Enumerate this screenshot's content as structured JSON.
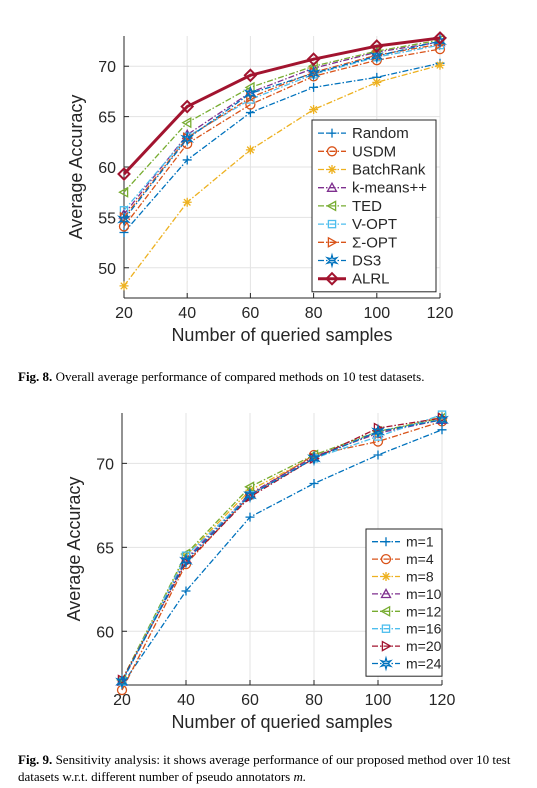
{
  "figures": [
    {
      "caption": {
        "label": "Fig. 8.",
        "text": "Overall average performance of compared methods on 10 test datasets."
      },
      "chart_data": {
        "type": "line",
        "xlabel": "Number of queried samples",
        "ylabel": "Average Accuracy",
        "x": [
          20,
          40,
          60,
          80,
          100,
          120
        ],
        "xlim": [
          20,
          120
        ],
        "ylim": [
          47,
          73
        ],
        "yticks": [
          50,
          55,
          60,
          65,
          70
        ],
        "grid": true,
        "legend_position": "bottom-right",
        "series": [
          {
            "name": "Random",
            "values": [
              53.5,
              60.7,
              65.4,
              67.9,
              68.9,
              70.3
            ],
            "color": "#0072BD",
            "marker": "plus",
            "dash": "dashdot"
          },
          {
            "name": "USDM",
            "values": [
              54.1,
              62.3,
              66.2,
              69.0,
              70.6,
              71.7
            ],
            "color": "#D95319",
            "marker": "circle",
            "dash": "dashdot"
          },
          {
            "name": "BatchRank",
            "values": [
              48.2,
              56.5,
              61.7,
              65.7,
              68.4,
              70.1
            ],
            "color": "#EDB120",
            "marker": "asterisk",
            "dash": "dashdot"
          },
          {
            "name": "k-means++",
            "values": [
              55.3,
              63.2,
              67.4,
              69.8,
              71.4,
              72.4
            ],
            "color": "#7E2F8E",
            "marker": "triangle",
            "dash": "dashdot"
          },
          {
            "name": "TED",
            "values": [
              57.5,
              64.4,
              67.9,
              70.0,
              71.5,
              72.6
            ],
            "color": "#77AC30",
            "marker": "triangle-left",
            "dash": "dashdot"
          },
          {
            "name": "V-OPT",
            "values": [
              55.7,
              63.0,
              66.7,
              69.2,
              70.9,
              72.1
            ],
            "color": "#4DBEEE",
            "marker": "square",
            "dash": "dashdot"
          },
          {
            "name": "Σ-OPT",
            "values": [
              55.0,
              62.9,
              66.9,
              69.4,
              71.1,
              72.2
            ],
            "color": "#D95319",
            "marker": "triangle-right",
            "dash": "dashdot"
          },
          {
            "name": "DS3",
            "values": [
              54.8,
              62.8,
              67.3,
              69.3,
              71.0,
              72.5
            ],
            "color": "#0072BD",
            "marker": "hexagram",
            "dash": "dashdot"
          },
          {
            "name": "ALRL",
            "values": [
              59.3,
              66.0,
              69.1,
              70.7,
              72.0,
              72.8
            ],
            "color": "#A2142F",
            "marker": "diamond",
            "dash": "solid"
          }
        ]
      }
    },
    {
      "caption": {
        "label": "Fig. 9.",
        "text": "Sensitivity analysis: it shows average performance of our proposed method over 10 test datasets w.r.t. different number of pseudo annotators ",
        "math": "m."
      },
      "chart_data": {
        "type": "line",
        "xlabel": "Number of queried samples",
        "ylabel": "Average Accuracy",
        "x": [
          20,
          40,
          60,
          80,
          100,
          120
        ],
        "xlim": [
          20,
          120
        ],
        "ylim": [
          56.8,
          73
        ],
        "yticks": [
          60,
          65,
          70
        ],
        "grid": true,
        "legend_position": "bottom-right",
        "series": [
          {
            "name": "m=1",
            "values": [
              56.8,
              62.4,
              66.8,
              68.8,
              70.5,
              72.0
            ],
            "color": "#0072BD",
            "marker": "plus",
            "dash": "dashdot"
          },
          {
            "name": "m=4",
            "values": [
              56.5,
              64.0,
              68.1,
              70.5,
              71.3,
              72.5
            ],
            "color": "#D95319",
            "marker": "circle",
            "dash": "dashdot"
          },
          {
            "name": "m=8",
            "values": [
              57.1,
              64.5,
              68.4,
              70.4,
              71.8,
              72.8
            ],
            "color": "#EDB120",
            "marker": "asterisk",
            "dash": "dashdot"
          },
          {
            "name": "m=10",
            "values": [
              57.0,
              64.3,
              68.2,
              70.4,
              71.8,
              72.6
            ],
            "color": "#7E2F8E",
            "marker": "triangle",
            "dash": "dashdot"
          },
          {
            "name": "m=12",
            "values": [
              57.1,
              64.6,
              68.6,
              70.5,
              71.9,
              72.7
            ],
            "color": "#77AC30",
            "marker": "triangle-left",
            "dash": "dashdot"
          },
          {
            "name": "m=16",
            "values": [
              57.0,
              64.5,
              68.1,
              70.3,
              71.6,
              72.9
            ],
            "color": "#4DBEEE",
            "marker": "square",
            "dash": "dashdot"
          },
          {
            "name": "m=20",
            "values": [
              57.1,
              64.1,
              68.0,
              70.3,
              72.1,
              72.7
            ],
            "color": "#A2142F",
            "marker": "triangle-right",
            "dash": "dashdot"
          },
          {
            "name": "m=24",
            "values": [
              57.0,
              64.2,
              68.1,
              70.3,
              71.9,
              72.6
            ],
            "color": "#0072BD",
            "marker": "hexagram",
            "dash": "dashdot"
          }
        ]
      }
    }
  ]
}
